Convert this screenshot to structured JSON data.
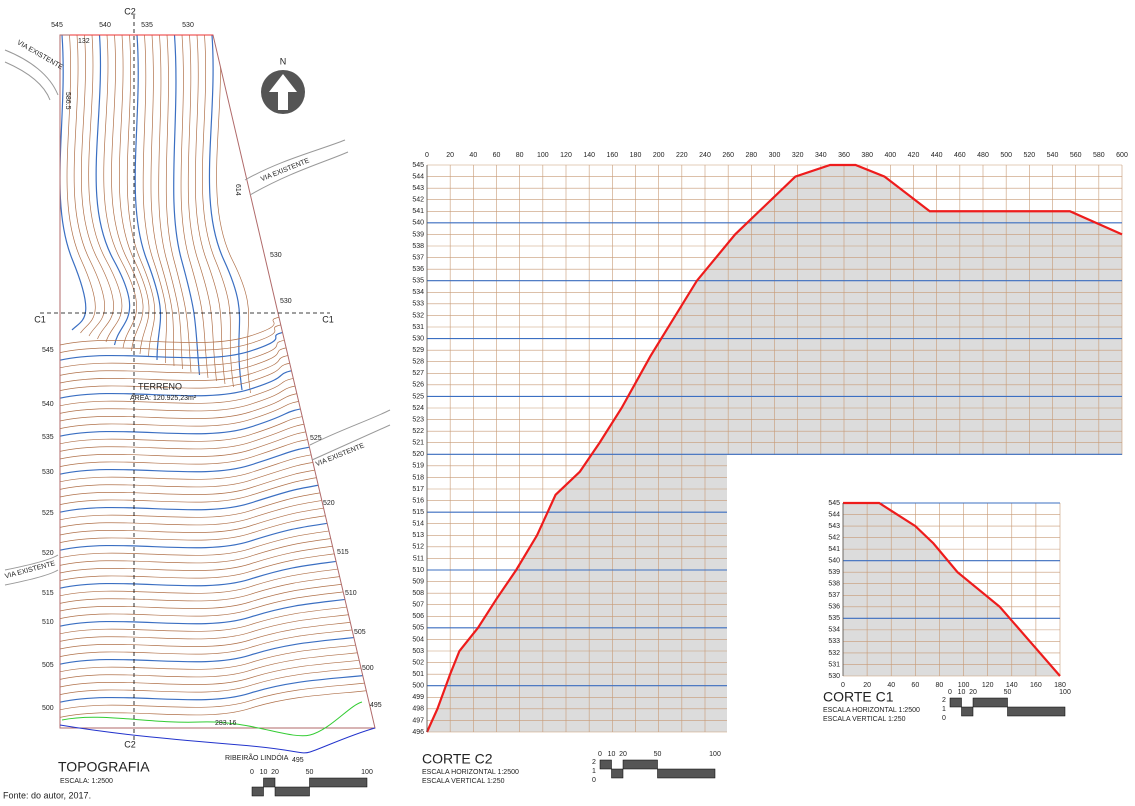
{
  "topografia": {
    "title": "TOPOGRAFIA",
    "scale": "ESCALA: 1:2500",
    "north": "N",
    "terreno": "TERRENO",
    "area": "ÁREA: 120.925,23m²",
    "vias": [
      "VIA EXISTENTE",
      "VIA EXISTENTE",
      "VIA EXISTENTE",
      "VIA EXISTENTE"
    ],
    "section_marks": [
      "C1",
      "C1",
      "C2",
      "C2"
    ],
    "stream": "RIBEIRÃO LINDÓIA",
    "dimensions": [
      "132",
      "586.5",
      "614",
      "283.16"
    ],
    "top_labels": [
      545,
      540,
      535,
      530
    ],
    "left_labels": [
      545,
      540,
      535,
      530,
      525,
      520,
      515,
      510,
      505,
      500
    ],
    "right_labels": [
      530,
      530,
      525,
      520,
      515,
      510,
      505,
      500,
      495,
      495
    ],
    "scale_bar": [
      0,
      10,
      20,
      50,
      100
    ]
  },
  "corte_c2": {
    "title": "CORTE C2",
    "scale_h": "ESCALA HORIZONTAL 1:2500",
    "scale_v": "ESCALA VERTICAL 1:250",
    "xlim": [
      0,
      600
    ],
    "ylim": [
      496,
      545
    ],
    "xticks": [
      0,
      20,
      40,
      60,
      80,
      100,
      120,
      140,
      160,
      180,
      200,
      220,
      240,
      260,
      280,
      300,
      320,
      340,
      360,
      380,
      400,
      420,
      440,
      460,
      480,
      500,
      520,
      540,
      560,
      580,
      600
    ],
    "yticks": [
      496,
      497,
      498,
      499,
      500,
      501,
      502,
      503,
      504,
      505,
      506,
      507,
      508,
      509,
      510,
      511,
      512,
      513,
      514,
      515,
      516,
      517,
      518,
      519,
      520,
      521,
      522,
      523,
      524,
      525,
      526,
      527,
      528,
      529,
      530,
      531,
      532,
      533,
      534,
      535,
      536,
      537,
      538,
      539,
      540,
      541,
      542,
      543,
      544,
      545
    ],
    "major_yticks": [
      500,
      505,
      510,
      515,
      520,
      525,
      530,
      535,
      540
    ],
    "x": [
      0,
      9,
      20,
      28,
      44,
      60,
      77,
      95,
      111,
      132,
      149,
      168,
      193,
      233,
      266,
      318,
      348,
      370,
      395,
      434,
      555,
      600
    ],
    "values": [
      496,
      498,
      501,
      503,
      505,
      507.5,
      510,
      513,
      516.5,
      518.5,
      521,
      524,
      528.5,
      535,
      539,
      544,
      545,
      545,
      544,
      541,
      541,
      539
    ],
    "color": "#ee1c1c",
    "scale_bar": [
      0,
      10,
      20,
      50,
      100
    ],
    "scale_side": [
      2,
      1,
      0
    ]
  },
  "corte_c1": {
    "title": "CORTE C1",
    "scale_h": "ESCALA HORIZONTAL 1:2500",
    "scale_v": "ESCALA VERTICAL 1:250",
    "xlim": [
      0,
      180
    ],
    "ylim": [
      530,
      545
    ],
    "xticks": [
      0,
      20,
      40,
      60,
      80,
      100,
      120,
      140,
      160,
      180
    ],
    "yticks": [
      530,
      531,
      532,
      533,
      534,
      535,
      536,
      537,
      538,
      539,
      540,
      541,
      542,
      543,
      544,
      545
    ],
    "major_yticks": [
      535,
      540,
      545
    ],
    "x": [
      0,
      30,
      60,
      75,
      95,
      130,
      180
    ],
    "values": [
      545,
      545,
      543,
      541.5,
      539,
      536,
      530
    ],
    "color": "#ee1c1c",
    "scale_bar": [
      0,
      10,
      20,
      50,
      100
    ],
    "scale_side": [
      2,
      1,
      0
    ]
  },
  "source": "Fonte: do autor, 2017."
}
